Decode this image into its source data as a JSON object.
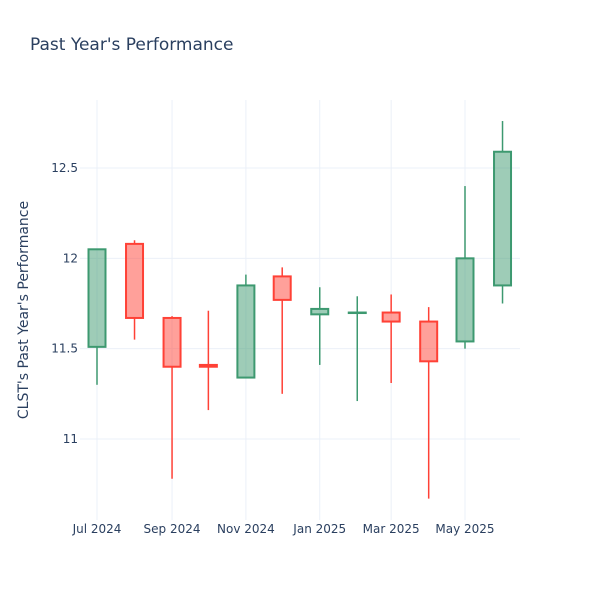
{
  "chart_data": {
    "type": "candlestick",
    "title": "Past Year's Performance",
    "xlabel": "",
    "ylabel": "CLST's Past Year's Performance",
    "ylim": [
      10.55,
      12.88
    ],
    "grid": true,
    "colors": {
      "up": "#3d9970",
      "down": "#ff4136"
    },
    "x_ticks": [
      {
        "x": "2024-07-01",
        "label": "Jul 2024"
      },
      {
        "x": "2024-09-01",
        "label": "Sep 2024"
      },
      {
        "x": "2024-11-01",
        "label": "Nov 2024"
      },
      {
        "x": "2025-01-01",
        "label": "Jan 2025"
      },
      {
        "x": "2025-03-01",
        "label": "Mar 2025"
      },
      {
        "x": "2025-05-01",
        "label": "May 2025"
      }
    ],
    "y_ticks": [
      {
        "value": 11,
        "label": "11"
      },
      {
        "value": 11.5,
        "label": "11.5"
      },
      {
        "value": 12,
        "label": "12"
      },
      {
        "value": 12.5,
        "label": "12.5"
      }
    ],
    "candles": [
      {
        "date": "2024-07-01",
        "open": 11.51,
        "high": 12.05,
        "low": 11.3,
        "close": 12.05
      },
      {
        "date": "2024-08-01",
        "open": 12.08,
        "high": 12.1,
        "low": 11.55,
        "close": 11.67
      },
      {
        "date": "2024-09-01",
        "open": 11.67,
        "high": 11.68,
        "low": 10.78,
        "close": 11.4
      },
      {
        "date": "2024-10-01",
        "open": 11.41,
        "high": 11.71,
        "low": 11.16,
        "close": 11.4
      },
      {
        "date": "2024-11-01",
        "open": 11.34,
        "high": 11.91,
        "low": 11.34,
        "close": 11.85
      },
      {
        "date": "2024-12-01",
        "open": 11.9,
        "high": 11.95,
        "low": 11.25,
        "close": 11.77
      },
      {
        "date": "2025-01-01",
        "open": 11.69,
        "high": 11.84,
        "low": 11.41,
        "close": 11.72
      },
      {
        "date": "2025-02-01",
        "open": 11.7,
        "high": 11.79,
        "low": 11.21,
        "close": 11.7
      },
      {
        "date": "2025-03-01",
        "open": 11.7,
        "high": 11.8,
        "low": 11.31,
        "close": 11.65
      },
      {
        "date": "2025-04-01",
        "open": 11.65,
        "high": 11.73,
        "low": 10.67,
        "close": 11.43
      },
      {
        "date": "2025-05-01",
        "open": 11.54,
        "high": 12.4,
        "low": 11.5,
        "close": 12.0
      },
      {
        "date": "2025-06-01",
        "open": 11.85,
        "high": 12.76,
        "low": 11.75,
        "close": 12.59
      }
    ]
  }
}
